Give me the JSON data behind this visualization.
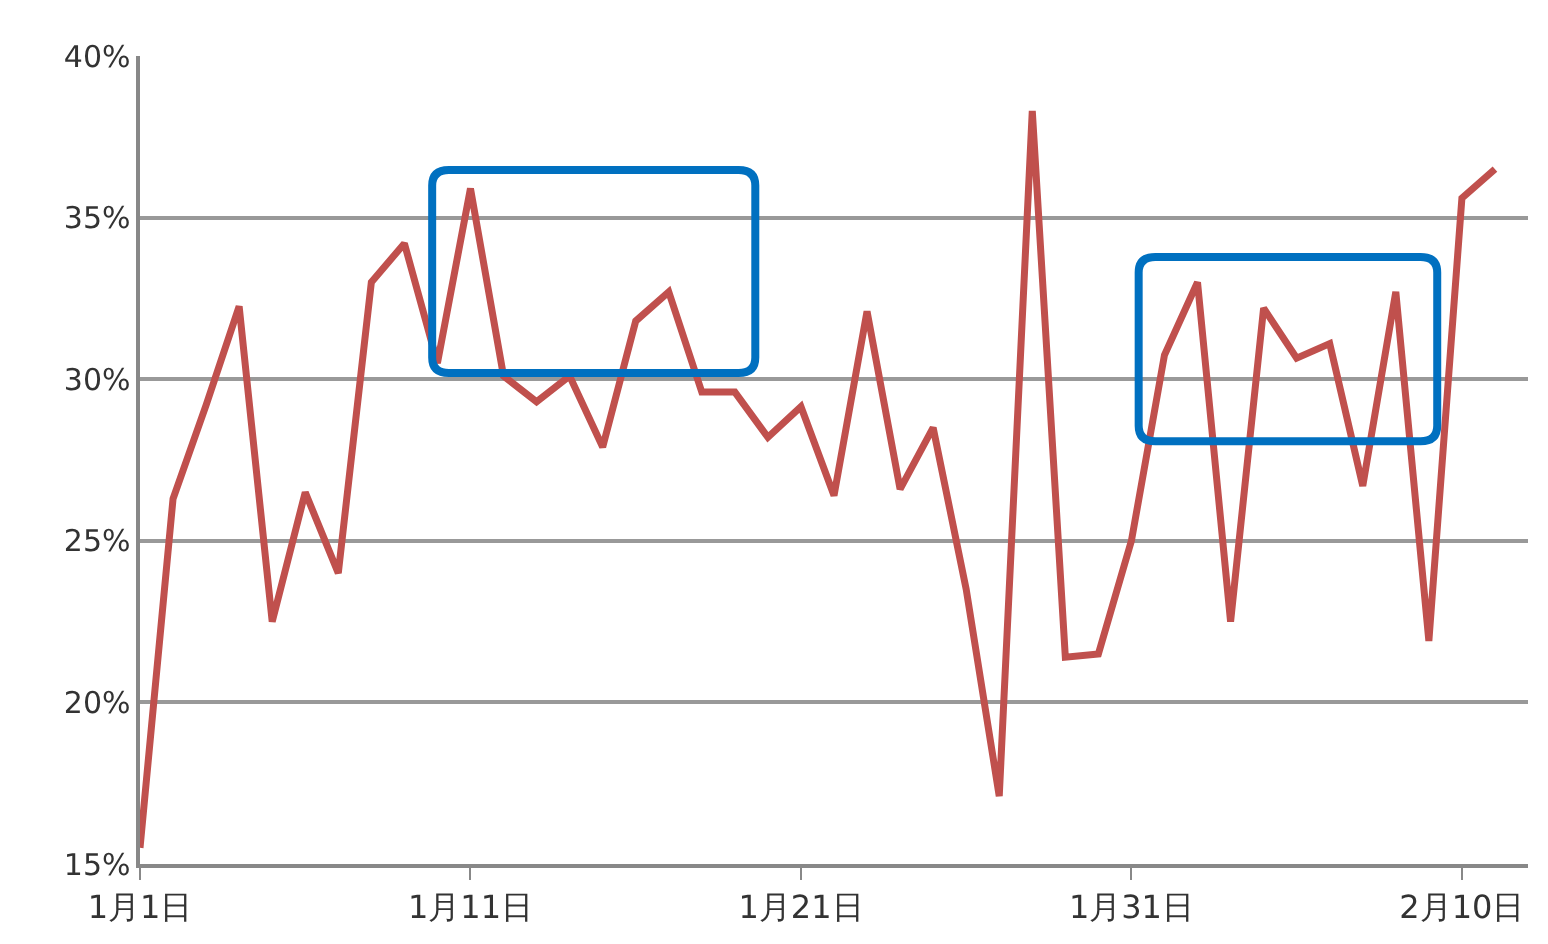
{
  "chart_data": {
    "type": "line",
    "x": [
      "--01-01",
      "--01-02",
      "--01-03",
      "--01-04",
      "--01-05",
      "--01-06",
      "--01-07",
      "--01-08",
      "--01-09",
      "--01-10",
      "--01-11",
      "--01-12",
      "--01-13",
      "--01-14",
      "--01-15",
      "--01-16",
      "--01-17",
      "--01-18",
      "--01-19",
      "--01-20",
      "--01-21",
      "--01-22",
      "--01-23",
      "--01-24",
      "--01-25",
      "--01-26",
      "--01-27",
      "--01-28",
      "--01-29",
      "--01-30",
      "--01-31",
      "--02-01",
      "--02-02",
      "--02-03",
      "--02-04",
      "--02-05",
      "--02-06",
      "--02-07",
      "--02-08",
      "--02-09",
      "--02-10",
      "--02-11"
    ],
    "series": [
      {
        "color": "#c0504d",
        "values": [
          15.5,
          26.3,
          29.2,
          32.25,
          22.5,
          26.5,
          24.0,
          33.0,
          34.2,
          30.5,
          35.9,
          30.1,
          29.3,
          30.1,
          27.9,
          31.8,
          32.7,
          29.6,
          29.6,
          28.2,
          29.15,
          26.4,
          32.1,
          26.6,
          28.5,
          23.5,
          17.1,
          38.3,
          21.4,
          21.5,
          25.0,
          30.75,
          33.0,
          22.5,
          32.2,
          30.65,
          31.1,
          26.7,
          32.7,
          21.9,
          35.6,
          36.5
        ]
      }
    ],
    "xlim": [
      "--01-01",
      "--02-12"
    ],
    "xticks": [
      {
        "value": "--01-01",
        "label": "1月1日"
      },
      {
        "value": "--01-11",
        "label": "1月11日"
      },
      {
        "value": "--01-21",
        "label": "1月21日"
      },
      {
        "value": "--01-31",
        "label": "1月31日"
      },
      {
        "value": "--02-10",
        "label": "2月10日"
      }
    ],
    "ylim": [
      15,
      40
    ],
    "yticks": [
      {
        "value": 15,
        "label": "15%"
      },
      {
        "value": 20,
        "label": "20%"
      },
      {
        "value": 25,
        "label": "25%"
      },
      {
        "value": 30,
        "label": "30%"
      },
      {
        "value": 35,
        "label": "35%"
      },
      {
        "value": 40,
        "label": "40%"
      }
    ],
    "grid": "y",
    "marker": "none",
    "line_style": "solid"
  }
}
